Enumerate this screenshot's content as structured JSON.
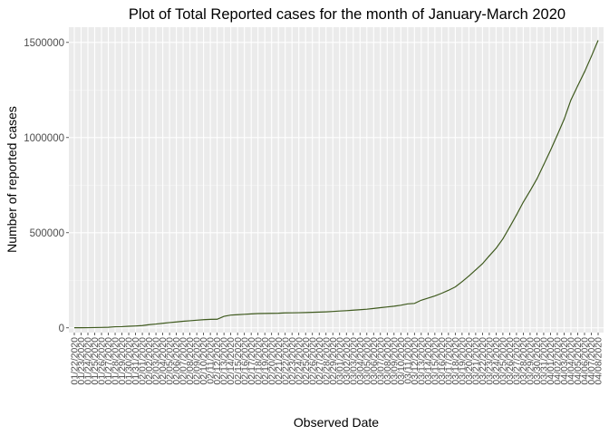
{
  "chart_data": {
    "type": "line",
    "title": "Plot of Total Reported cases for the month of January-March 2020",
    "xlabel": "Observed Date",
    "ylabel": "Number of reported cases",
    "ylim": [
      -25000,
      1580000
    ],
    "yticks": [
      0,
      500000,
      1000000,
      1500000
    ],
    "ytick_labels": [
      "0",
      "500000",
      "1000000",
      "1500000"
    ],
    "grid": true,
    "line_color": "#3f5a1e",
    "panel_color": "#ebebeb",
    "x": [
      "01/22/2020",
      "01/23/2020",
      "01/24/2020",
      "01/25/2020",
      "01/26/2020",
      "01/27/2020",
      "01/28/2020",
      "01/29/2020",
      "01/30/2020",
      "01/31/2020",
      "02/01/2020",
      "02/02/2020",
      "02/03/2020",
      "02/04/2020",
      "02/05/2020",
      "02/06/2020",
      "02/07/2020",
      "02/08/2020",
      "02/09/2020",
      "02/10/2020",
      "02/11/2020",
      "02/12/2020",
      "02/13/2020",
      "02/14/2020",
      "02/15/2020",
      "02/16/2020",
      "02/17/2020",
      "02/18/2020",
      "02/19/2020",
      "02/20/2020",
      "02/21/2020",
      "02/22/2020",
      "02/23/2020",
      "02/24/2020",
      "02/25/2020",
      "02/26/2020",
      "02/27/2020",
      "02/28/2020",
      "02/29/2020",
      "03/01/2020",
      "03/02/2020",
      "03/03/2020",
      "03/04/2020",
      "03/05/2020",
      "03/06/2020",
      "03/07/2020",
      "03/08/2020",
      "03/09/2020",
      "03/10/2020",
      "03/11/2020",
      "03/12/2020",
      "03/13/2020",
      "03/14/2020",
      "03/15/2020",
      "03/16/2020",
      "03/17/2020",
      "03/18/2020",
      "03/19/2020",
      "03/20/2020",
      "03/21/2020",
      "03/22/2020",
      "03/23/2020",
      "03/24/2020",
      "03/25/2020",
      "03/26/2020",
      "03/27/2020",
      "03/28/2020",
      "03/29/2020",
      "03/30/2020",
      "03/31/2020",
      "04/01/2020",
      "04/02/2020",
      "04/03/2020",
      "04/04/2020",
      "04/05/2020",
      "04/06/2020",
      "04/07/2020",
      "04/08/2020"
    ],
    "series": [
      {
        "values": [
          555,
          654,
          941,
          1434,
          2118,
          2927,
          5578,
          6166,
          8234,
          9927,
          12038,
          16787,
          19881,
          23892,
          27636,
          30818,
          34392,
          37121,
          40151,
          42763,
          44803,
          45222,
          60370,
          66887,
          69032,
          71226,
          73260,
          75138,
          75641,
          76199,
          76843,
          78599,
          78985,
          79570,
          80415,
          81397,
          82756,
          84124,
          86013,
          88371,
          90309,
          92844,
          95124,
          97886,
          101801,
          105847,
          109821,
          113590,
          118620,
          125875,
          128343,
          145193,
          156099,
          167447,
          181546,
          197168,
          214915,
          242713,
          272167,
          304528,
          336953,
          378235,
          418045,
          467653,
          529591,
          593291,
          660706,
          720117,
          782365,
          857487,
          932605,
          1013157,
          1095917,
          1197405,
          1272115,
          1345101,
          1426096,
          1511104
        ]
      }
    ]
  }
}
